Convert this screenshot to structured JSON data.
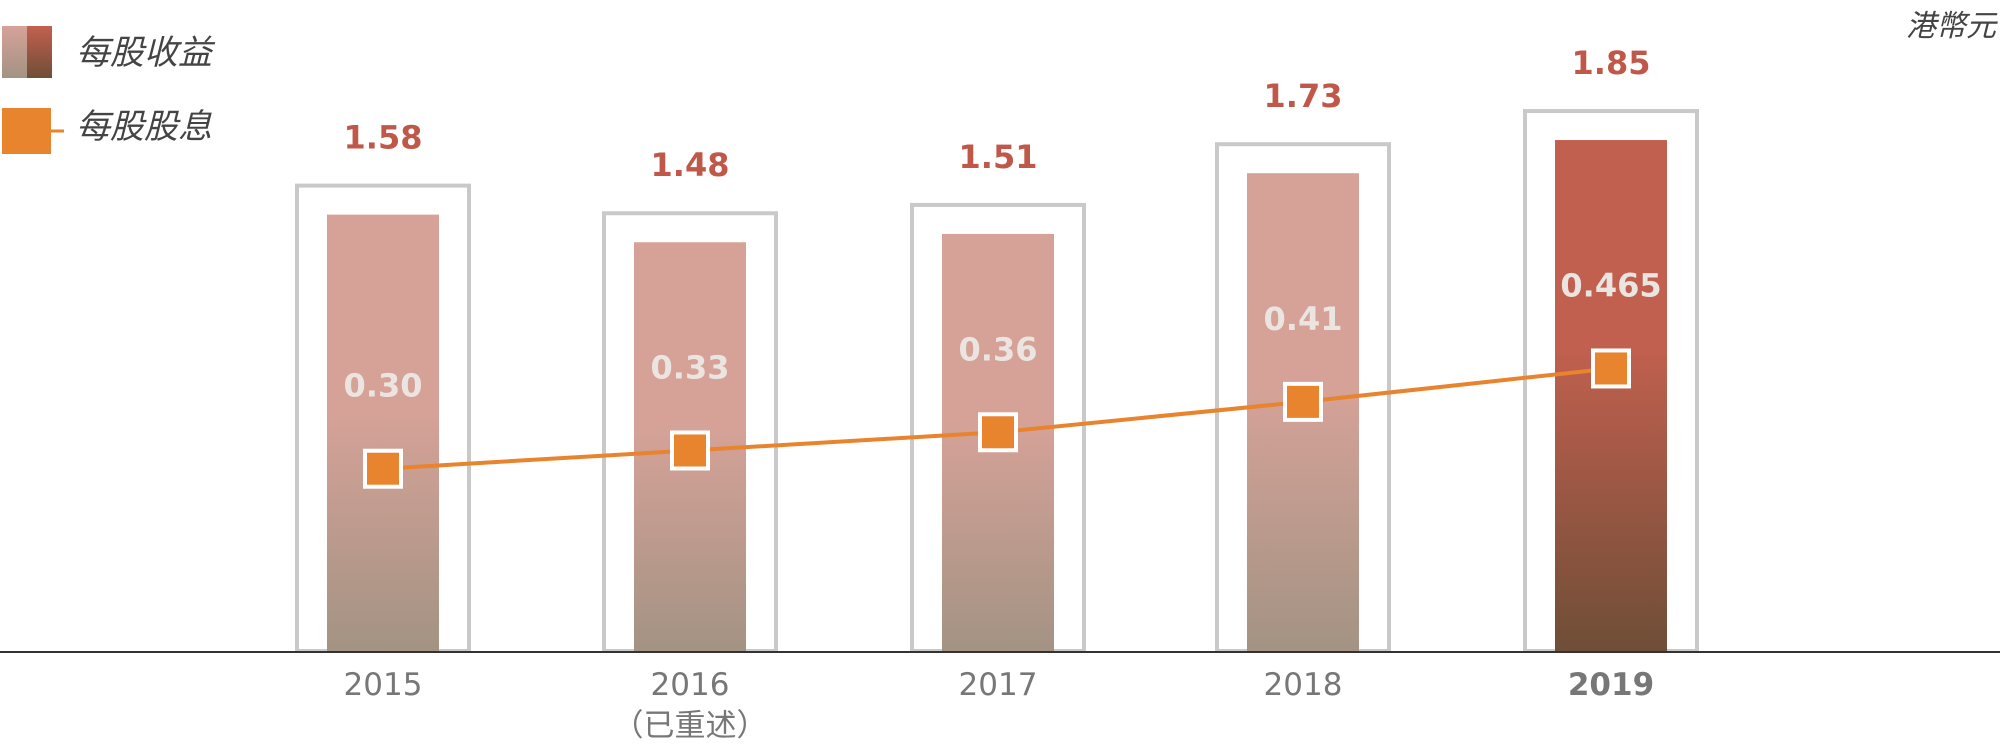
{
  "unit": "港幣元",
  "legend": {
    "eps_label": "每股收益",
    "dps_label": "每股股息"
  },
  "colors": {
    "eps_bar_top": "#d6a298",
    "eps_bar_bottom": "#a39383",
    "eps_highlight_top": "#c2604f",
    "eps_highlight_bottom": "#6f4e37",
    "frame": "#c9c9c9",
    "dps_line": "#e8832e",
    "eps_label": "#c0584a",
    "axis": "#333333"
  },
  "chart_data": {
    "type": "bar",
    "categories": [
      "2015",
      "2016",
      "2017",
      "2018",
      "2019"
    ],
    "category_sublabels": [
      "",
      "（已重述）",
      "",
      "",
      ""
    ],
    "highlight_category": "2019",
    "series": [
      {
        "name": "每股收益",
        "type": "bar",
        "values": [
          1.58,
          1.48,
          1.51,
          1.73,
          1.85
        ],
        "labels": [
          "1.58",
          "1.48",
          "1.51",
          "1.73",
          "1.85"
        ]
      },
      {
        "name": "每股股息",
        "type": "line",
        "values": [
          0.3,
          0.33,
          0.36,
          0.41,
          0.465
        ],
        "labels": [
          "0.30",
          "0.33",
          "0.36",
          "0.41",
          "0.465"
        ]
      }
    ],
    "ylim": [
      0,
      2.1
    ],
    "grid": false,
    "legend_position": "top-left"
  }
}
